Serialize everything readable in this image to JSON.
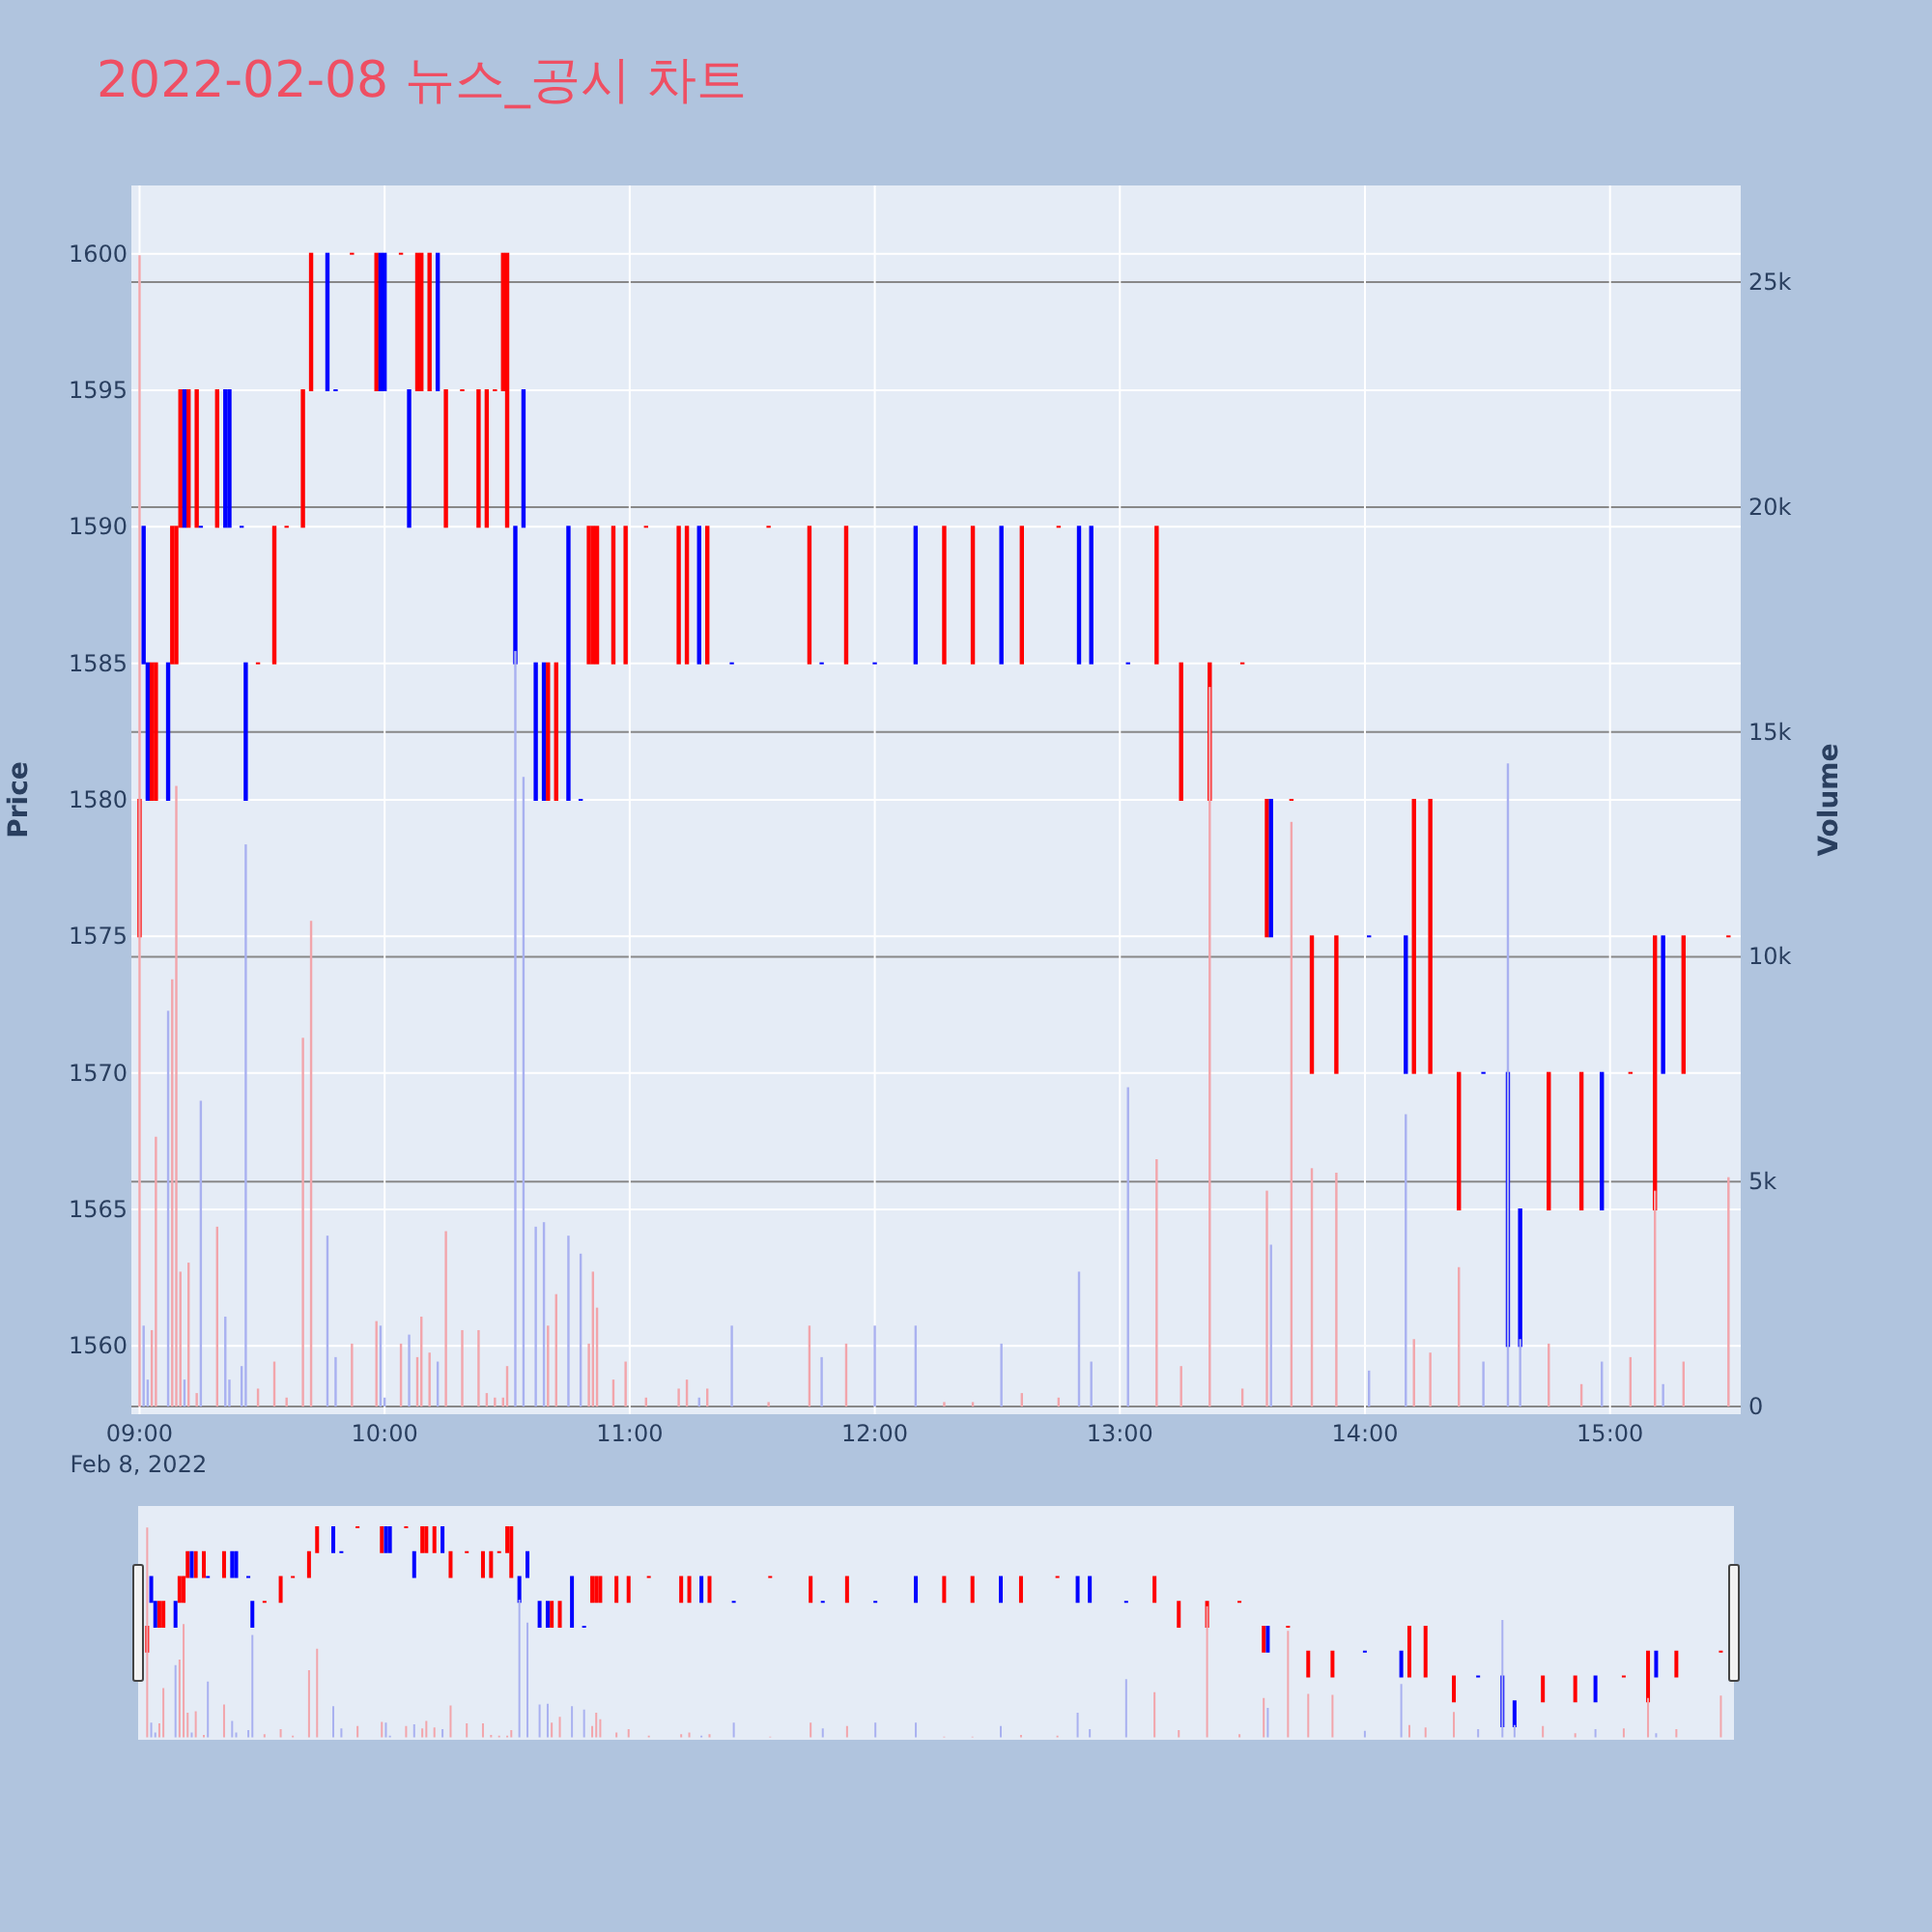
{
  "chart_data": {
    "type": "candlestick",
    "title": "2022-02-08 뉴스_공시 차트",
    "ylabel": "Price",
    "y2label": "Volume",
    "x": [
      "2022-02-08T09:00",
      "2022-02-08T09:01",
      "2022-02-08T09:02",
      "2022-02-08T09:03",
      "2022-02-08T09:04",
      "2022-02-08T09:07",
      "2022-02-08T09:08",
      "2022-02-08T09:09",
      "2022-02-08T09:10",
      "2022-02-08T09:11",
      "2022-02-08T09:12",
      "2022-02-08T09:14",
      "2022-02-08T09:15",
      "2022-02-08T09:19",
      "2022-02-08T09:21",
      "2022-02-08T09:22",
      "2022-02-08T09:25",
      "2022-02-08T09:26",
      "2022-02-08T09:29",
      "2022-02-08T09:33",
      "2022-02-08T09:36",
      "2022-02-08T09:40",
      "2022-02-08T09:42",
      "2022-02-08T09:46",
      "2022-02-08T09:48",
      "2022-02-08T09:52",
      "2022-02-08T09:58",
      "2022-02-08T09:59",
      "2022-02-08T10:00",
      "2022-02-08T10:04",
      "2022-02-08T10:06",
      "2022-02-08T10:08",
      "2022-02-08T10:09",
      "2022-02-08T10:11",
      "2022-02-08T10:13",
      "2022-02-08T10:15",
      "2022-02-08T10:19",
      "2022-02-08T10:23",
      "2022-02-08T10:25",
      "2022-02-08T10:27",
      "2022-02-08T10:29",
      "2022-02-08T10:30",
      "2022-02-08T10:32",
      "2022-02-08T10:34",
      "2022-02-08T10:37",
      "2022-02-08T10:39",
      "2022-02-08T10:40",
      "2022-02-08T10:42",
      "2022-02-08T10:45",
      "2022-02-08T10:48",
      "2022-02-08T10:50",
      "2022-02-08T10:51",
      "2022-02-08T10:52",
      "2022-02-08T10:56",
      "2022-02-08T10:59",
      "2022-02-08T11:04",
      "2022-02-08T11:12",
      "2022-02-08T11:14",
      "2022-02-08T11:17",
      "2022-02-08T11:19",
      "2022-02-08T11:25",
      "2022-02-08T11:34",
      "2022-02-08T11:44",
      "2022-02-08T11:47",
      "2022-02-08T11:53",
      "2022-02-08T12:00",
      "2022-02-08T12:10",
      "2022-02-08T12:17",
      "2022-02-08T12:24",
      "2022-02-08T12:31",
      "2022-02-08T12:36",
      "2022-02-08T12:45",
      "2022-02-08T12:50",
      "2022-02-08T12:53",
      "2022-02-08T13:02",
      "2022-02-08T13:09",
      "2022-02-08T13:15",
      "2022-02-08T13:22",
      "2022-02-08T13:30",
      "2022-02-08T13:36",
      "2022-02-08T13:37",
      "2022-02-08T13:42",
      "2022-02-08T13:47",
      "2022-02-08T13:53",
      "2022-02-08T14:01",
      "2022-02-08T14:10",
      "2022-02-08T14:12",
      "2022-02-08T14:16",
      "2022-02-08T14:23",
      "2022-02-08T14:29",
      "2022-02-08T14:35",
      "2022-02-08T14:38",
      "2022-02-08T14:45",
      "2022-02-08T14:53",
      "2022-02-08T14:58",
      "2022-02-08T15:05",
      "2022-02-08T15:11",
      "2022-02-08T15:13",
      "2022-02-08T15:18",
      "2022-02-08T15:29"
    ],
    "series": [
      {
        "type": "bar",
        "axis": "y2",
        "values": [
          25600,
          1800,
          600,
          1700,
          6000,
          8800,
          9500,
          13800,
          3000,
          600,
          3200,
          300,
          6800,
          4000,
          2000,
          600,
          900,
          12500,
          400,
          1000,
          200,
          8200,
          10800,
          3800,
          1100,
          1400,
          1900,
          1800,
          200,
          1400,
          1600,
          1100,
          2000,
          1200,
          1000,
          3900,
          1700,
          1700,
          300,
          200,
          200,
          900,
          16800,
          14000,
          4000,
          4100,
          1800,
          2500,
          3800,
          3400,
          1400,
          3000,
          2200,
          600,
          1000,
          200,
          400,
          600,
          200,
          400,
          1800,
          100,
          1800,
          1100,
          1400,
          1800,
          1800,
          100,
          100,
          1400,
          300,
          200,
          3000,
          1000,
          7100,
          5500,
          900,
          16000,
          400,
          4800,
          3600,
          13000,
          5300,
          5200,
          800,
          6500,
          1500,
          1200,
          3100,
          1000,
          14300,
          1500,
          1400,
          500,
          1000,
          1100,
          4800,
          500,
          1000,
          5100
        ],
        "colors": [
          "#f2a5ab",
          "#a9b1f0",
          "#a9b1f0",
          "#f2a5ab",
          "#f2a5ab",
          "#a9b1f0",
          "#f2a5ab",
          "#f2a5ab",
          "#f2a5ab",
          "#a9b1f0",
          "#f2a5ab",
          "#f2a5ab",
          "#a9b1f0",
          "#f2a5ab",
          "#a9b1f0",
          "#a9b1f0",
          "#a9b1f0",
          "#a9b1f0",
          "#f2a5ab",
          "#f2a5ab",
          "#f2a5ab",
          "#f2a5ab",
          "#f2a5ab",
          "#a9b1f0",
          "#a9b1f0",
          "#f2a5ab",
          "#f2a5ab",
          "#a9b1f0",
          "#a9b1f0",
          "#f2a5ab",
          "#a9b1f0",
          "#f2a5ab",
          "#f2a5ab",
          "#f2a5ab",
          "#a9b1f0",
          "#f2a5ab",
          "#f2a5ab",
          "#f2a5ab",
          "#f2a5ab",
          "#f2a5ab",
          "#f2a5ab",
          "#f2a5ab",
          "#a9b1f0",
          "#a9b1f0",
          "#a9b1f0",
          "#a9b1f0",
          "#f2a5ab",
          "#f2a5ab",
          "#a9b1f0",
          "#a9b1f0",
          "#f2a5ab",
          "#f2a5ab",
          "#f2a5ab",
          "#f2a5ab",
          "#f2a5ab",
          "#f2a5ab",
          "#f2a5ab",
          "#f2a5ab",
          "#a9b1f0",
          "#f2a5ab",
          "#a9b1f0",
          "#f2a5ab",
          "#f2a5ab",
          "#a9b1f0",
          "#f2a5ab",
          "#a9b1f0",
          "#a9b1f0",
          "#f2a5ab",
          "#f2a5ab",
          "#a9b1f0",
          "#f2a5ab",
          "#f2a5ab",
          "#a9b1f0",
          "#a9b1f0",
          "#a9b1f0",
          "#f2a5ab",
          "#f2a5ab",
          "#f2a5ab",
          "#f2a5ab",
          "#f2a5ab",
          "#a9b1f0",
          "#f2a5ab",
          "#f2a5ab",
          "#f2a5ab",
          "#a9b1f0",
          "#a9b1f0",
          "#f2a5ab",
          "#f2a5ab",
          "#f2a5ab",
          "#a9b1f0",
          "#a9b1f0",
          "#a9b1f0",
          "#f2a5ab",
          "#f2a5ab",
          "#a9b1f0",
          "#f2a5ab",
          "#f2a5ab",
          "#a9b1f0",
          "#f2a5ab",
          "#f2a5ab"
        ]
      },
      {
        "ohlc": [
          [
            1575,
            1580,
            1575,
            1580
          ],
          [
            1590,
            1590,
            1585,
            1585
          ],
          [
            1585,
            1585,
            1580,
            1580
          ],
          [
            1580,
            1585,
            1580,
            1585
          ],
          [
            1580,
            1585,
            1580,
            1585
          ],
          [
            1585,
            1585,
            1580,
            1580
          ],
          [
            1585,
            1590,
            1585,
            1590
          ],
          [
            1585,
            1590,
            1585,
            1590
          ],
          [
            1590,
            1595,
            1590,
            1595
          ],
          [
            1595,
            1595,
            1590,
            1590
          ],
          [
            1590,
            1595,
            1590,
            1595
          ],
          [
            1590,
            1595,
            1590,
            1595
          ],
          [
            1590,
            1590,
            1590,
            1590
          ],
          [
            1590,
            1595,
            1590,
            1595
          ],
          [
            1595,
            1595,
            1590,
            1590
          ],
          [
            1595,
            1595,
            1590,
            1590
          ],
          [
            1590,
            1590,
            1590,
            1590
          ],
          [
            1585,
            1585,
            1580,
            1580
          ],
          [
            1585,
            1585,
            1585,
            1585
          ],
          [
            1585,
            1590,
            1585,
            1590
          ],
          [
            1590,
            1590,
            1590,
            1590
          ],
          [
            1590,
            1595,
            1590,
            1595
          ],
          [
            1595,
            1600,
            1595,
            1600
          ],
          [
            1600,
            1600,
            1595,
            1595
          ],
          [
            1595,
            1595,
            1595,
            1595
          ],
          [
            1600,
            1600,
            1600,
            1600
          ],
          [
            1595,
            1600,
            1595,
            1600
          ],
          [
            1600,
            1600,
            1595,
            1595
          ],
          [
            1600,
            1600,
            1595,
            1595
          ],
          [
            1600,
            1600,
            1600,
            1600
          ],
          [
            1595,
            1595,
            1590,
            1590
          ],
          [
            1595,
            1600,
            1595,
            1600
          ],
          [
            1595,
            1600,
            1595,
            1600
          ],
          [
            1595,
            1600,
            1595,
            1600
          ],
          [
            1600,
            1600,
            1595,
            1595
          ],
          [
            1590,
            1595,
            1590,
            1595
          ],
          [
            1595,
            1595,
            1595,
            1595
          ],
          [
            1590,
            1595,
            1590,
            1595
          ],
          [
            1590,
            1595,
            1590,
            1595
          ],
          [
            1595,
            1595,
            1595,
            1595
          ],
          [
            1595,
            1600,
            1595,
            1600
          ],
          [
            1590,
            1600,
            1590,
            1600
          ],
          [
            1590,
            1590,
            1585,
            1585
          ],
          [
            1595,
            1595,
            1590,
            1590
          ],
          [
            1585,
            1585,
            1580,
            1580
          ],
          [
            1585,
            1585,
            1580,
            1580
          ],
          [
            1580,
            1585,
            1580,
            1585
          ],
          [
            1580,
            1585,
            1580,
            1585
          ],
          [
            1590,
            1590,
            1580,
            1580
          ],
          [
            1580,
            1580,
            1580,
            1580
          ],
          [
            1585,
            1590,
            1585,
            1590
          ],
          [
            1585,
            1590,
            1585,
            1590
          ],
          [
            1585,
            1590,
            1585,
            1590
          ],
          [
            1585,
            1590,
            1585,
            1590
          ],
          [
            1585,
            1590,
            1585,
            1590
          ],
          [
            1590,
            1590,
            1590,
            1590
          ],
          [
            1585,
            1590,
            1585,
            1590
          ],
          [
            1585,
            1590,
            1585,
            1590
          ],
          [
            1590,
            1590,
            1585,
            1585
          ],
          [
            1585,
            1590,
            1585,
            1590
          ],
          [
            1585,
            1585,
            1585,
            1585
          ],
          [
            1590,
            1590,
            1590,
            1590
          ],
          [
            1585,
            1590,
            1585,
            1590
          ],
          [
            1585,
            1585,
            1585,
            1585
          ],
          [
            1585,
            1590,
            1585,
            1590
          ],
          [
            1585,
            1585,
            1585,
            1585
          ],
          [
            1590,
            1590,
            1585,
            1585
          ],
          [
            1585,
            1590,
            1585,
            1590
          ],
          [
            1585,
            1590,
            1585,
            1590
          ],
          [
            1590,
            1590,
            1585,
            1585
          ],
          [
            1585,
            1590,
            1585,
            1590
          ],
          [
            1590,
            1590,
            1590,
            1590
          ],
          [
            1590,
            1590,
            1585,
            1585
          ],
          [
            1590,
            1590,
            1585,
            1585
          ],
          [
            1585,
            1585,
            1585,
            1585
          ],
          [
            1585,
            1590,
            1585,
            1590
          ],
          [
            1580,
            1585,
            1580,
            1585
          ],
          [
            1580,
            1585,
            1580,
            1585
          ],
          [
            1585,
            1585,
            1585,
            1585
          ],
          [
            1575,
            1580,
            1575,
            1580
          ],
          [
            1580,
            1580,
            1575,
            1575
          ],
          [
            1580,
            1580,
            1580,
            1580
          ],
          [
            1570,
            1575,
            1570,
            1575
          ],
          [
            1570,
            1575,
            1570,
            1575
          ],
          [
            1575,
            1575,
            1575,
            1575
          ],
          [
            1575,
            1575,
            1570,
            1570
          ],
          [
            1570,
            1580,
            1570,
            1580
          ],
          [
            1570,
            1580,
            1570,
            1580
          ],
          [
            1565,
            1570,
            1565,
            1570
          ],
          [
            1570,
            1570,
            1570,
            1570
          ],
          [
            1570,
            1570,
            1560,
            1560
          ],
          [
            1565,
            1565,
            1560,
            1560
          ],
          [
            1565,
            1570,
            1565,
            1570
          ],
          [
            1565,
            1570,
            1565,
            1570
          ],
          [
            1570,
            1570,
            1565,
            1565
          ],
          [
            1570,
            1570,
            1570,
            1570
          ],
          [
            1565,
            1575,
            1565,
            1575
          ],
          [
            1575,
            1575,
            1570,
            1570
          ],
          [
            1570,
            1575,
            1570,
            1575
          ],
          [
            1575,
            1575,
            1575,
            1575
          ]
        ],
        "colors": [
          "#ff0000",
          "#0000ff",
          "#0000ff",
          "#ff0000",
          "#ff0000",
          "#0000ff",
          "#ff0000",
          "#ff0000",
          "#ff0000",
          "#0000ff",
          "#ff0000",
          "#ff0000",
          "#0000ff",
          "#ff0000",
          "#0000ff",
          "#0000ff",
          "#0000ff",
          "#0000ff",
          "#ff0000",
          "#ff0000",
          "#ff0000",
          "#ff0000",
          "#ff0000",
          "#0000ff",
          "#0000ff",
          "#ff0000",
          "#ff0000",
          "#0000ff",
          "#0000ff",
          "#ff0000",
          "#0000ff",
          "#ff0000",
          "#ff0000",
          "#ff0000",
          "#0000ff",
          "#ff0000",
          "#ff0000",
          "#ff0000",
          "#ff0000",
          "#ff0000",
          "#ff0000",
          "#ff0000",
          "#0000ff",
          "#0000ff",
          "#0000ff",
          "#0000ff",
          "#ff0000",
          "#ff0000",
          "#0000ff",
          "#0000ff",
          "#ff0000",
          "#ff0000",
          "#ff0000",
          "#ff0000",
          "#ff0000",
          "#ff0000",
          "#ff0000",
          "#ff0000",
          "#0000ff",
          "#ff0000",
          "#0000ff",
          "#ff0000",
          "#ff0000",
          "#0000ff",
          "#ff0000",
          "#0000ff",
          "#0000ff",
          "#ff0000",
          "#ff0000",
          "#0000ff",
          "#ff0000",
          "#ff0000",
          "#0000ff",
          "#0000ff",
          "#0000ff",
          "#ff0000",
          "#ff0000",
          "#ff0000",
          "#ff0000",
          "#ff0000",
          "#0000ff",
          "#ff0000",
          "#ff0000",
          "#ff0000",
          "#0000ff",
          "#0000ff",
          "#ff0000",
          "#ff0000",
          "#ff0000",
          "#0000ff",
          "#0000ff",
          "#0000ff",
          "#ff0000",
          "#ff0000",
          "#0000ff",
          "#ff0000",
          "#ff0000",
          "#0000ff",
          "#ff0000",
          "#ff0000"
        ]
      }
    ],
    "xlim": [
      "2022-02-08T08:58",
      "2022-02-08T15:32"
    ],
    "xticks": [
      {
        "value": "2022-02-08T09:00",
        "label": "09:00\nFeb 8, 2022"
      },
      {
        "value": "2022-02-08T10:00",
        "label": "10:00"
      },
      {
        "value": "2022-02-08T11:00",
        "label": "11:00"
      },
      {
        "value": "2022-02-08T12:00",
        "label": "12:00"
      },
      {
        "value": "2022-02-08T13:00",
        "label": "13:00"
      },
      {
        "value": "2022-02-08T14:00",
        "label": "14:00"
      },
      {
        "value": "2022-02-08T15:00",
        "label": "15:00"
      }
    ],
    "ylim": [
      1557.5,
      1602.5
    ],
    "yticks": [
      1560,
      1565,
      1570,
      1575,
      1580,
      1585,
      1590,
      1595,
      1600
    ],
    "y2lim": [
      -170,
      27150
    ],
    "y2ticks": [
      0,
      {
        "value": 5000,
        "label": "5k"
      },
      {
        "value": 10000,
        "label": "10k"
      },
      {
        "value": 15000,
        "label": "15k"
      },
      {
        "value": 20000,
        "label": "20k"
      },
      {
        "value": 25000,
        "label": "25k"
      }
    ],
    "grid": true
  }
}
